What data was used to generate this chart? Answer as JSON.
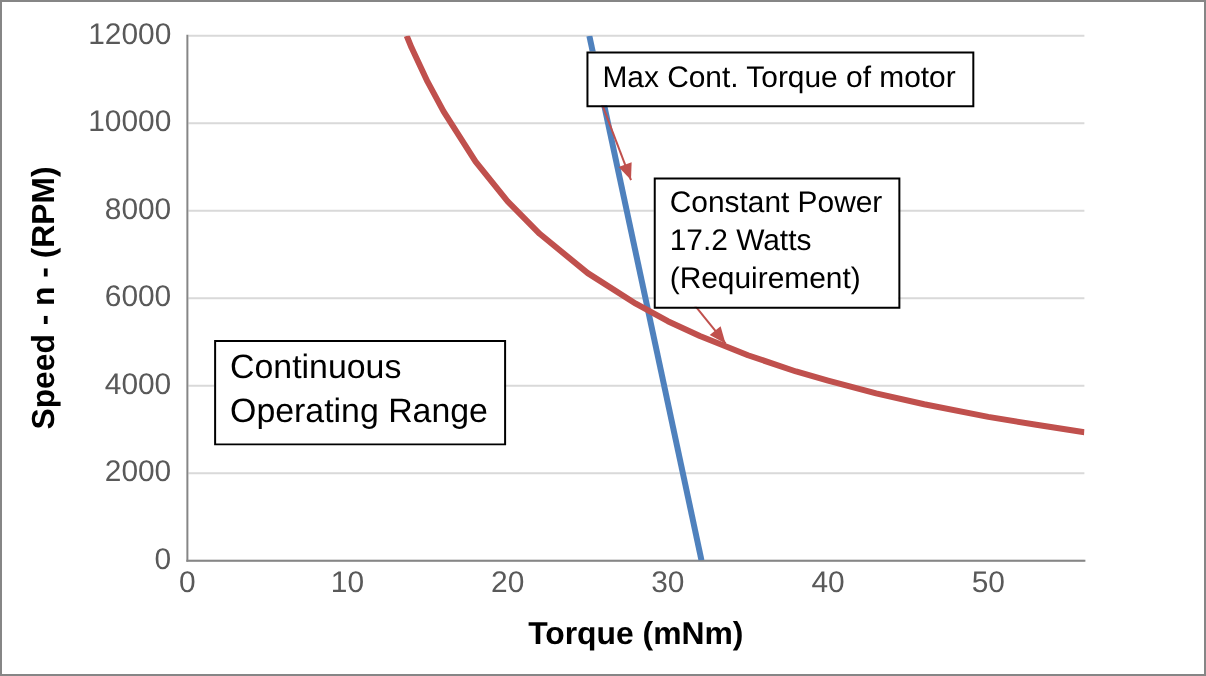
{
  "chart_data": {
    "type": "line",
    "xlabel": "Torque (mNm)",
    "ylabel": "Speed - n - (RPM)",
    "series": [
      {
        "color": "#c0504d",
        "x": [
          13.7,
          14,
          15,
          16,
          18,
          20,
          22,
          25,
          28,
          30,
          32,
          35,
          38,
          40,
          43,
          46,
          50,
          53,
          56
        ],
        "values": [
          12000,
          11730,
          10950,
          10270,
          9120,
          8210,
          7470,
          6570,
          5870,
          5470,
          5130,
          4690,
          4320,
          4110,
          3820,
          3570,
          3280,
          3100,
          2930
        ]
      },
      {
        "color": "#4f81bd",
        "x": [
          25.1,
          32.1
        ],
        "values": [
          12000,
          0
        ]
      }
    ],
    "xlim": [
      0,
      56
    ],
    "xticks": [
      0,
      10,
      20,
      30,
      40,
      50
    ],
    "ylim": [
      0,
      12000
    ],
    "yticks": [
      0,
      2000,
      4000,
      6000,
      8000,
      10000,
      12000
    ],
    "grid": "y",
    "legend": false,
    "marker": "none",
    "line_style": "solid",
    "annotations": [
      {
        "text": "Max Cont. Torque of motor",
        "x": 27.7,
        "y": 8700
      },
      {
        "text": "Constant Power\n17.2 Watts\n(Requirement)",
        "x": 33.6,
        "y": 4960
      },
      "Continuous\nOperating Range"
    ]
  }
}
